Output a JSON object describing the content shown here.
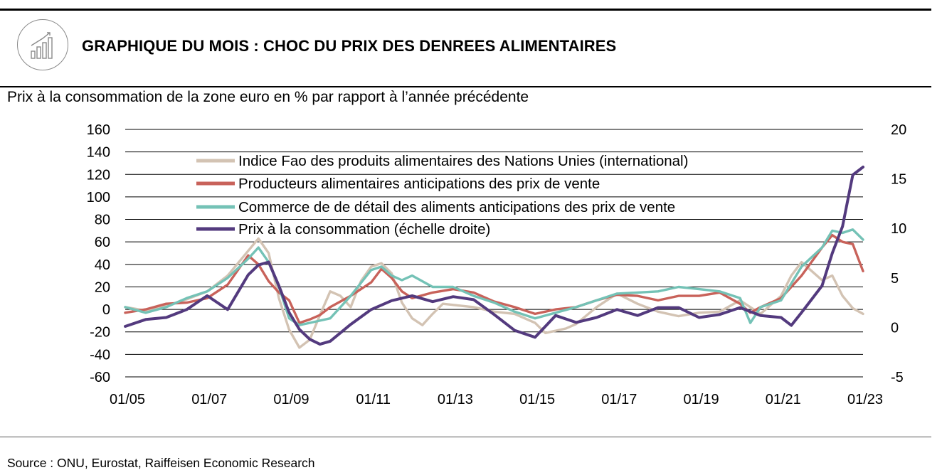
{
  "header": {
    "title": "GRAPHIQUE DU MOIS : CHOC DU PRIX DES DENREES ALIMENTAIRES",
    "icon": "bar-chart-growth-icon"
  },
  "subtitle": "Prix à la consommation de la zone euro en % par rapport à l’année précédente",
  "source": "Source : ONU, Eurostat, Raiffeisen Economic Research",
  "chart_data": {
    "type": "line",
    "x_ticks": [
      "01/05",
      "01/07",
      "01/09",
      "01/11",
      "01/13",
      "01/15",
      "01/17",
      "01/19",
      "01/21",
      "01/23"
    ],
    "x_range": [
      "2005-01",
      "2023-01"
    ],
    "y_left": {
      "range": [
        -60,
        160
      ],
      "ticks": [
        -60,
        -40,
        -20,
        0,
        20,
        40,
        60,
        80,
        100,
        120,
        140,
        160
      ]
    },
    "y_right": {
      "range": [
        -5,
        20
      ],
      "ticks": [
        -5,
        0,
        5,
        10,
        15,
        20
      ]
    },
    "grid": true,
    "legend_position": "top-left",
    "series": [
      {
        "name": "Indice Fao des produits alimentaires des Nations Unies (international)",
        "color": "#d3c3b3",
        "axis": "left",
        "points": [
          [
            "2005-01",
            2
          ],
          [
            "2005-07",
            -1
          ],
          [
            "2006-01",
            3
          ],
          [
            "2006-07",
            9
          ],
          [
            "2007-01",
            16
          ],
          [
            "2007-07",
            30
          ],
          [
            "2008-01",
            52
          ],
          [
            "2008-04",
            63
          ],
          [
            "2008-07",
            50
          ],
          [
            "2008-10",
            10
          ],
          [
            "2009-01",
            -18
          ],
          [
            "2009-04",
            -34
          ],
          [
            "2009-07",
            -27
          ],
          [
            "2009-10",
            -5
          ],
          [
            "2010-01",
            16
          ],
          [
            "2010-04",
            12
          ],
          [
            "2010-07",
            2
          ],
          [
            "2010-10",
            25
          ],
          [
            "2011-01",
            38
          ],
          [
            "2011-04",
            41
          ],
          [
            "2011-07",
            32
          ],
          [
            "2011-10",
            6
          ],
          [
            "2012-01",
            -8
          ],
          [
            "2012-04",
            -14
          ],
          [
            "2012-07",
            -4
          ],
          [
            "2012-10",
            5
          ],
          [
            "2013-01",
            4
          ],
          [
            "2013-07",
            2
          ],
          [
            "2014-01",
            -2
          ],
          [
            "2014-07",
            -4
          ],
          [
            "2015-01",
            -12
          ],
          [
            "2015-04",
            -21
          ],
          [
            "2015-10",
            -17
          ],
          [
            "2016-01",
            -13
          ],
          [
            "2016-07",
            2
          ],
          [
            "2017-01",
            14
          ],
          [
            "2017-07",
            5
          ],
          [
            "2018-01",
            -2
          ],
          [
            "2018-07",
            -6
          ],
          [
            "2019-01",
            -3
          ],
          [
            "2019-07",
            -2
          ],
          [
            "2020-01",
            8
          ],
          [
            "2020-07",
            -4
          ],
          [
            "2021-01",
            12
          ],
          [
            "2021-04",
            30
          ],
          [
            "2021-07",
            42
          ],
          [
            "2021-10",
            34
          ],
          [
            "2022-01",
            26
          ],
          [
            "2022-04",
            30
          ],
          [
            "2022-07",
            12
          ],
          [
            "2022-10",
            1
          ],
          [
            "2023-01",
            -4
          ]
        ]
      },
      {
        "name": "Producteurs alimentaires anticipations des prix de vente",
        "color": "#c8625a",
        "axis": "left",
        "points": [
          [
            "2005-01",
            -3
          ],
          [
            "2005-07",
            0
          ],
          [
            "2006-01",
            5
          ],
          [
            "2006-07",
            6
          ],
          [
            "2007-01",
            10
          ],
          [
            "2007-07",
            22
          ],
          [
            "2008-01",
            48
          ],
          [
            "2008-04",
            40
          ],
          [
            "2008-07",
            25
          ],
          [
            "2008-10",
            15
          ],
          [
            "2009-01",
            8
          ],
          [
            "2009-04",
            -12
          ],
          [
            "2009-07",
            -9
          ],
          [
            "2009-10",
            -5
          ],
          [
            "2010-01",
            2
          ],
          [
            "2010-07",
            12
          ],
          [
            "2011-01",
            24
          ],
          [
            "2011-04",
            36
          ],
          [
            "2011-07",
            28
          ],
          [
            "2011-10",
            16
          ],
          [
            "2012-01",
            10
          ],
          [
            "2012-07",
            15
          ],
          [
            "2013-01",
            18
          ],
          [
            "2013-07",
            15
          ],
          [
            "2014-01",
            7
          ],
          [
            "2014-07",
            2
          ],
          [
            "2015-01",
            -4
          ],
          [
            "2015-07",
            0
          ],
          [
            "2016-01",
            2
          ],
          [
            "2016-07",
            8
          ],
          [
            "2017-01",
            13
          ],
          [
            "2017-07",
            12
          ],
          [
            "2018-01",
            8
          ],
          [
            "2018-07",
            12
          ],
          [
            "2019-01",
            12
          ],
          [
            "2019-07",
            15
          ],
          [
            "2020-01",
            5
          ],
          [
            "2020-04",
            -3
          ],
          [
            "2020-07",
            2
          ],
          [
            "2021-01",
            10
          ],
          [
            "2021-07",
            30
          ],
          [
            "2022-01",
            55
          ],
          [
            "2022-04",
            66
          ],
          [
            "2022-07",
            60
          ],
          [
            "2022-10",
            58
          ],
          [
            "2023-01",
            34
          ]
        ]
      },
      {
        "name": "Commerce de de détail des aliments anticipations des prix de vente",
        "color": "#74c2b6",
        "axis": "left",
        "points": [
          [
            "2005-01",
            2
          ],
          [
            "2005-07",
            -3
          ],
          [
            "2006-01",
            2
          ],
          [
            "2006-07",
            10
          ],
          [
            "2007-01",
            16
          ],
          [
            "2007-07",
            28
          ],
          [
            "2008-01",
            45
          ],
          [
            "2008-04",
            55
          ],
          [
            "2008-07",
            42
          ],
          [
            "2008-10",
            20
          ],
          [
            "2009-01",
            -8
          ],
          [
            "2009-04",
            -14
          ],
          [
            "2009-07",
            -12
          ],
          [
            "2009-10",
            -10
          ],
          [
            "2010-01",
            -8
          ],
          [
            "2010-07",
            12
          ],
          [
            "2011-01",
            35
          ],
          [
            "2011-04",
            38
          ],
          [
            "2011-07",
            30
          ],
          [
            "2011-10",
            26
          ],
          [
            "2012-01",
            30
          ],
          [
            "2012-07",
            20
          ],
          [
            "2013-01",
            20
          ],
          [
            "2013-07",
            12
          ],
          [
            "2014-01",
            6
          ],
          [
            "2014-07",
            -2
          ],
          [
            "2015-01",
            -8
          ],
          [
            "2015-07",
            -3
          ],
          [
            "2016-01",
            2
          ],
          [
            "2016-07",
            8
          ],
          [
            "2017-01",
            14
          ],
          [
            "2017-07",
            15
          ],
          [
            "2018-01",
            16
          ],
          [
            "2018-07",
            20
          ],
          [
            "2019-01",
            18
          ],
          [
            "2019-07",
            16
          ],
          [
            "2020-01",
            10
          ],
          [
            "2020-04",
            -12
          ],
          [
            "2020-07",
            2
          ],
          [
            "2021-01",
            8
          ],
          [
            "2021-07",
            38
          ],
          [
            "2022-01",
            55
          ],
          [
            "2022-04",
            70
          ],
          [
            "2022-07",
            68
          ],
          [
            "2022-10",
            71
          ],
          [
            "2023-01",
            62
          ]
        ]
      },
      {
        "name": "Prix à la consommation (échelle droite)",
        "color": "#533a7e",
        "axis": "right",
        "points": [
          [
            "2005-01",
            0.1
          ],
          [
            "2005-07",
            0.8
          ],
          [
            "2006-01",
            1.0
          ],
          [
            "2006-07",
            1.8
          ],
          [
            "2007-01",
            3.2
          ],
          [
            "2007-07",
            1.8
          ],
          [
            "2008-01",
            5.3
          ],
          [
            "2008-04",
            6.3
          ],
          [
            "2008-07",
            6.6
          ],
          [
            "2008-10",
            4.2
          ],
          [
            "2009-01",
            1.5
          ],
          [
            "2009-04",
            -0.2
          ],
          [
            "2009-07",
            -1.2
          ],
          [
            "2009-10",
            -1.7
          ],
          [
            "2010-01",
            -1.4
          ],
          [
            "2010-07",
            0.3
          ],
          [
            "2011-01",
            1.8
          ],
          [
            "2011-07",
            2.7
          ],
          [
            "2012-01",
            3.2
          ],
          [
            "2012-07",
            2.6
          ],
          [
            "2013-01",
            3.1
          ],
          [
            "2013-07",
            2.8
          ],
          [
            "2014-01",
            1.3
          ],
          [
            "2014-07",
            -0.3
          ],
          [
            "2015-01",
            -1.0
          ],
          [
            "2015-07",
            1.2
          ],
          [
            "2016-01",
            0.5
          ],
          [
            "2016-07",
            1.0
          ],
          [
            "2017-01",
            1.8
          ],
          [
            "2017-07",
            1.2
          ],
          [
            "2018-01",
            2.0
          ],
          [
            "2018-07",
            2.0
          ],
          [
            "2019-01",
            1.0
          ],
          [
            "2019-07",
            1.3
          ],
          [
            "2020-01",
            2.0
          ],
          [
            "2020-07",
            1.2
          ],
          [
            "2021-01",
            1.0
          ],
          [
            "2021-04",
            0.2
          ],
          [
            "2021-07",
            1.5
          ],
          [
            "2022-01",
            4.2
          ],
          [
            "2022-04",
            7.5
          ],
          [
            "2022-07",
            10.2
          ],
          [
            "2022-10",
            15.4
          ],
          [
            "2023-01",
            16.2
          ]
        ]
      }
    ]
  }
}
